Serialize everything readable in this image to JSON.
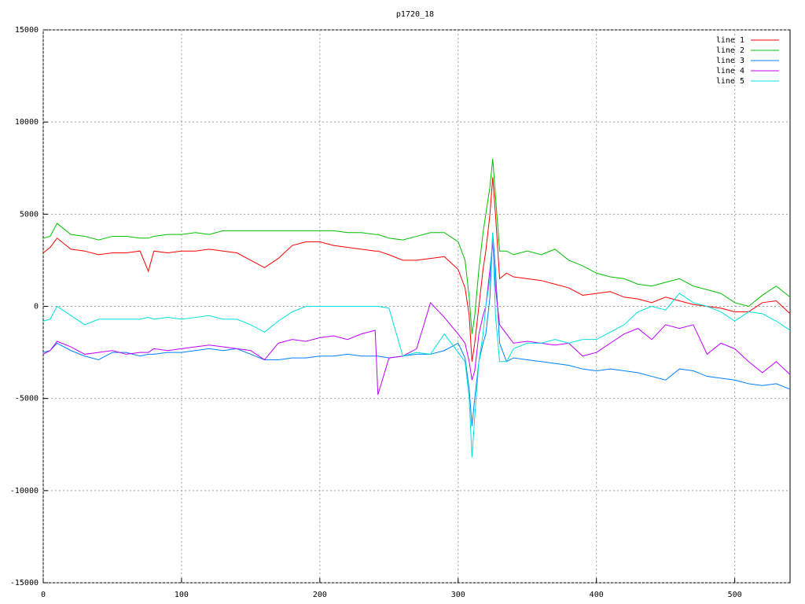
{
  "chart_data": {
    "type": "line",
    "title": "p1720_18",
    "x": [
      0,
      5,
      10,
      20,
      30,
      40,
      50,
      60,
      70,
      76,
      80,
      90,
      100,
      110,
      120,
      130,
      140,
      150,
      160,
      170,
      180,
      190,
      200,
      210,
      220,
      230,
      240,
      242,
      250,
      260,
      270,
      280,
      290,
      300,
      305,
      308,
      310,
      312,
      315,
      318,
      320,
      323,
      325,
      327,
      330,
      335,
      340,
      350,
      360,
      370,
      380,
      390,
      400,
      410,
      420,
      430,
      440,
      450,
      460,
      470,
      480,
      490,
      500,
      510,
      520,
      530,
      540
    ],
    "series": [
      {
        "name": "line 1",
        "color": "#ff0000",
        "values": [
          2900,
          3200,
          3700,
          3100,
          3000,
          2800,
          2900,
          2900,
          3000,
          1900,
          3000,
          2900,
          3000,
          3000,
          3100,
          3000,
          2900,
          2500,
          2100,
          2600,
          3300,
          3500,
          3500,
          3300,
          3200,
          3100,
          3000,
          3000,
          2800,
          2500,
          2500,
          2600,
          2700,
          2000,
          1000,
          -500,
          -3000,
          -2000,
          0,
          2000,
          3000,
          5000,
          7000,
          5000,
          1500,
          1800,
          1600,
          1500,
          1400,
          1200,
          1000,
          600,
          700,
          800,
          500,
          400,
          200,
          500,
          300,
          100,
          0,
          -100,
          -300,
          -300,
          200,
          300,
          -400
        ]
      },
      {
        "name": "line 2",
        "color": "#00c000",
        "values": [
          3700,
          3800,
          4500,
          3900,
          3800,
          3600,
          3800,
          3800,
          3700,
          3700,
          3800,
          3900,
          3900,
          4000,
          3900,
          4100,
          4100,
          4100,
          4100,
          4100,
          4100,
          4100,
          4100,
          4100,
          4000,
          4000,
          3900,
          3900,
          3700,
          3600,
          3800,
          4000,
          4000,
          3500,
          2500,
          500,
          -1500,
          -500,
          2000,
          4000,
          5000,
          6500,
          8000,
          6000,
          3000,
          3000,
          2800,
          3000,
          2800,
          3100,
          2500,
          2200,
          1800,
          1600,
          1500,
          1200,
          1100,
          1300,
          1500,
          1100,
          900,
          700,
          200,
          0,
          600,
          1100,
          500
        ]
      },
      {
        "name": "line 3",
        "color": "#0080ff",
        "values": [
          -2500,
          -2400,
          -2000,
          -2400,
          -2700,
          -2900,
          -2500,
          -2500,
          -2700,
          -2600,
          -2600,
          -2500,
          -2500,
          -2400,
          -2300,
          -2400,
          -2300,
          -2600,
          -2900,
          -2900,
          -2800,
          -2800,
          -2700,
          -2700,
          -2600,
          -2700,
          -2700,
          -2700,
          -2800,
          -2700,
          -2600,
          -2600,
          -2400,
          -2000,
          -2800,
          -4500,
          -6500,
          -5000,
          -3000,
          -2000,
          -1500,
          500,
          4000,
          2000,
          -2000,
          -3000,
          -2800,
          -2900,
          -3000,
          -3100,
          -3200,
          -3400,
          -3500,
          -3400,
          -3500,
          -3600,
          -3800,
          -4000,
          -3400,
          -3500,
          -3800,
          -3900,
          -4000,
          -4200,
          -4300,
          -4200,
          -4500
        ]
      },
      {
        "name": "line 4",
        "color": "#c000ff",
        "values": [
          -2600,
          -2400,
          -1900,
          -2200,
          -2600,
          -2500,
          -2400,
          -2600,
          -2500,
          -2500,
          -2300,
          -2400,
          -2300,
          -2200,
          -2100,
          -2200,
          -2300,
          -2400,
          -2900,
          -2000,
          -1800,
          -1900,
          -1700,
          -1600,
          -1800,
          -1500,
          -1300,
          -4800,
          -2800,
          -2700,
          -2300,
          200,
          -600,
          -1500,
          -2000,
          -3000,
          -4000,
          -3500,
          -1500,
          -500,
          0,
          2000,
          3500,
          1000,
          -1000,
          -1500,
          -2000,
          -1900,
          -2000,
          -2100,
          -2000,
          -2700,
          -2500,
          -2000,
          -1500,
          -1200,
          -1800,
          -1000,
          -1200,
          -1000,
          -2600,
          -2000,
          -2300,
          -3000,
          -3600,
          -3000,
          -3700
        ]
      },
      {
        "name": "line 5",
        "color": "#00e0e0",
        "values": [
          -800,
          -700,
          0,
          -500,
          -1000,
          -700,
          -700,
          -700,
          -700,
          -600,
          -700,
          -600,
          -700,
          -600,
          -500,
          -700,
          -700,
          -1000,
          -1400,
          -800,
          -300,
          0,
          0,
          0,
          0,
          0,
          0,
          0,
          -100,
          -2700,
          -2500,
          -2600,
          -1500,
          -2500,
          -3000,
          -5000,
          -8200,
          -6000,
          -3000,
          -1500,
          0,
          1500,
          4000,
          -500,
          -3000,
          -3000,
          -2300,
          -2000,
          -2000,
          -1800,
          -2000,
          -1800,
          -1800,
          -1400,
          -1000,
          -300,
          0,
          -200,
          700,
          200,
          0,
          -300,
          -800,
          -300,
          -400,
          -800,
          -1300
        ]
      }
    ],
    "xlim": [
      0,
      540
    ],
    "xticks": [
      0,
      100,
      200,
      300,
      400,
      500
    ],
    "ylim": [
      -15000,
      15000
    ],
    "yticks": [
      -15000,
      -10000,
      -5000,
      0,
      5000,
      10000,
      15000
    ],
    "grid": true,
    "legend": "top-right"
  }
}
